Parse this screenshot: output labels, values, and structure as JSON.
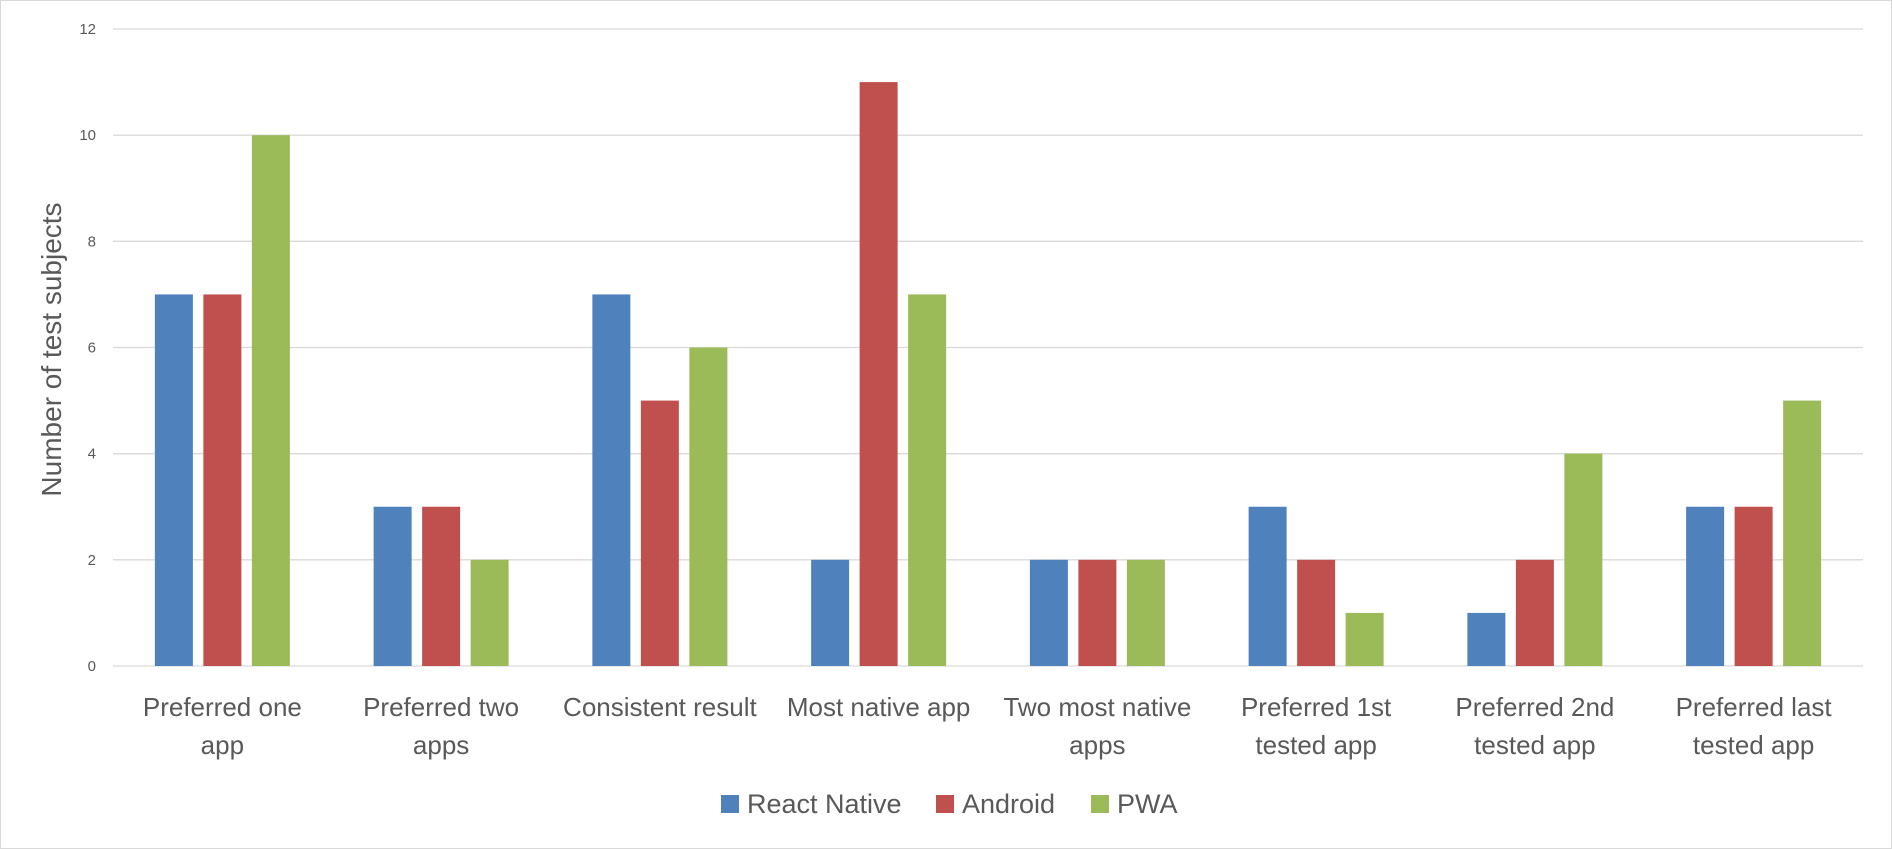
{
  "chart_data": {
    "type": "bar",
    "title": "",
    "xlabel": "",
    "ylabel": "Number of test subjects",
    "ylim": [
      0,
      12
    ],
    "yticks": [
      "0",
      "2",
      "4",
      "6",
      "8",
      "10",
      "12"
    ],
    "grid": true,
    "legend_position": "bottom",
    "categories": [
      [
        "Preferred one",
        "app"
      ],
      [
        "Preferred two",
        "apps"
      ],
      [
        "Consistent result"
      ],
      [
        "Most native app"
      ],
      [
        "Two most native",
        "apps"
      ],
      [
        "Preferred 1st",
        "tested app"
      ],
      [
        "Preferred 2nd",
        "tested app"
      ],
      [
        "Preferred last",
        "tested app"
      ]
    ],
    "series": [
      {
        "name": "React Native",
        "color": "#4f81bd",
        "values": [
          7,
          3,
          7,
          2,
          2,
          3,
          1,
          3
        ]
      },
      {
        "name": "Android",
        "color": "#c0504d",
        "values": [
          7,
          3,
          5,
          11,
          2,
          2,
          2,
          3
        ]
      },
      {
        "name": "PWA",
        "color": "#9bbb59",
        "values": [
          10,
          2,
          6,
          7,
          2,
          1,
          4,
          5
        ]
      }
    ]
  }
}
